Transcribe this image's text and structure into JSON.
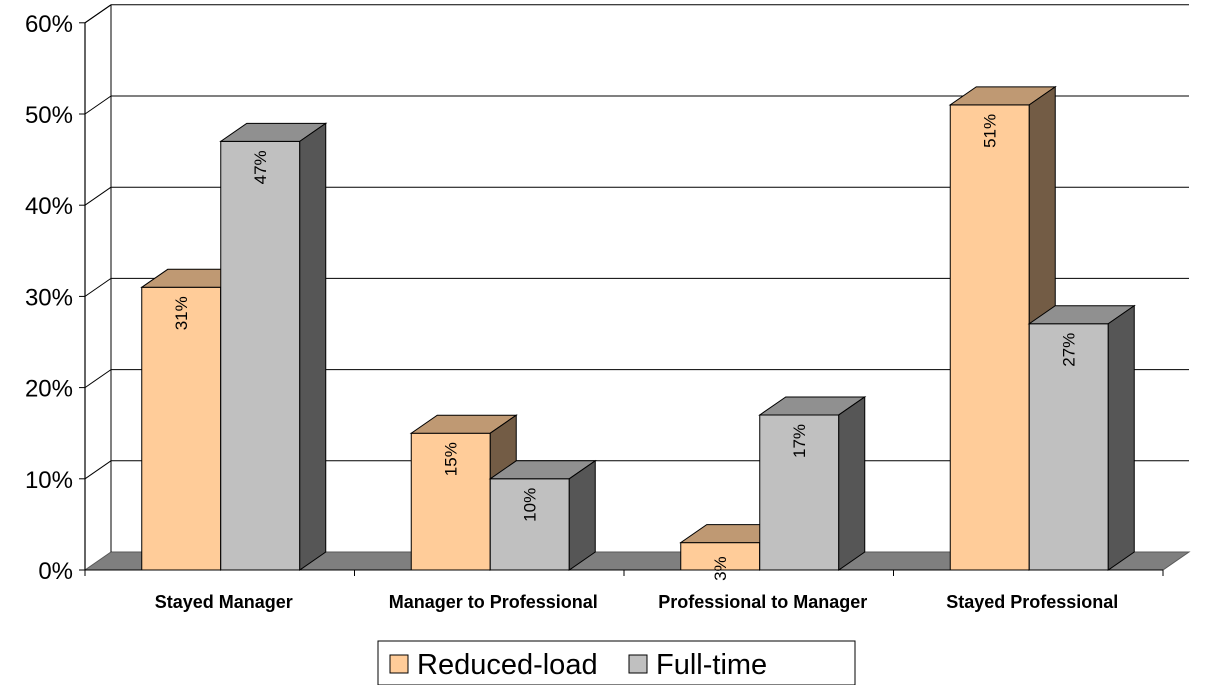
{
  "chart_data": {
    "type": "bar",
    "categories": [
      "Stayed Manager",
      "Manager to Professional",
      "Professional to Manager",
      "Stayed Professional"
    ],
    "series": [
      {
        "name": "Reduced-load",
        "values": [
          31,
          15,
          3,
          51
        ],
        "labels": [
          "31%",
          "15%",
          "3%",
          "51%"
        ],
        "color": "#FFCC99"
      },
      {
        "name": "Full-time",
        "values": [
          47,
          10,
          17,
          27
        ],
        "labels": [
          "47%",
          "10%",
          "17%",
          "27%"
        ],
        "color": "#C0C0C0"
      }
    ],
    "y_ticks": [
      "0%",
      "10%",
      "20%",
      "30%",
      "40%",
      "50%",
      "60%"
    ],
    "ylim": [
      0,
      60
    ],
    "grid": true,
    "legend_position": "bottom-center",
    "style": "3d-clustered-column"
  }
}
